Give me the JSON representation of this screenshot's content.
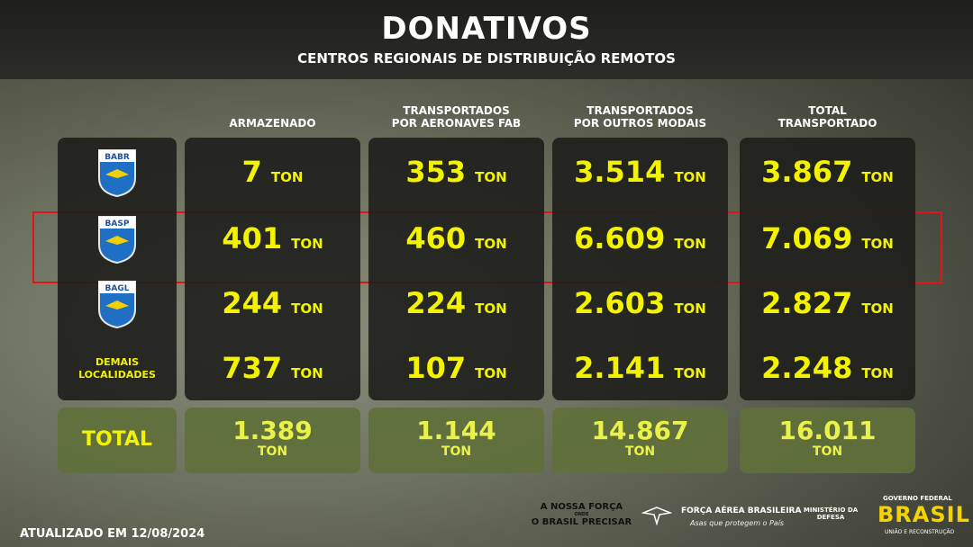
{
  "header": {
    "title": "DONATIVOS",
    "subtitle": "CENTROS REGIONAIS DE DISTRIBUIÇÃO REMOTOS"
  },
  "table": {
    "columns": [
      "ARMAZENADO",
      "TRANSPORTADOS\nPOR AERONAVES FAB",
      "TRANSPORTADOS\nPOR OUTROS MODAIS",
      "TOTAL\nTRANSPORTADO"
    ],
    "unit": "TON",
    "rows": [
      {
        "badge": "BABR",
        "cells": [
          "7",
          "353",
          "3.514",
          "3.867"
        ]
      },
      {
        "badge": "BASP",
        "cells": [
          "401",
          "460",
          "6.609",
          "7.069"
        ]
      },
      {
        "badge": "BAGL",
        "cells": [
          "244",
          "224",
          "2.603",
          "2.827"
        ]
      },
      {
        "label": "DEMAIS\nLOCALIDADES",
        "cells": [
          "737",
          "107",
          "2.141",
          "2.248"
        ]
      }
    ],
    "total": {
      "label": "TOTAL",
      "cells": [
        "1.389",
        "1.144",
        "14.867",
        "16.011"
      ]
    }
  },
  "footer": {
    "updated": "ATUALIZADO EM 12/08/2024",
    "slogan_top": "A NOSSA FORÇA",
    "slogan_mid": "ONDE",
    "slogan_bottom": "O BRASIL PRECISAR",
    "fab": "FORÇA AÉREA BRASILEIRA",
    "fab_tagline": "Asas que protegem o País",
    "ministry": "MINISTÉRIO DA\nDEFESA",
    "gov": "GOVERNO FEDERAL",
    "brasil": "BRASIL",
    "gov_tagline": "UNIÃO E RECONSTRUÇÃO"
  }
}
